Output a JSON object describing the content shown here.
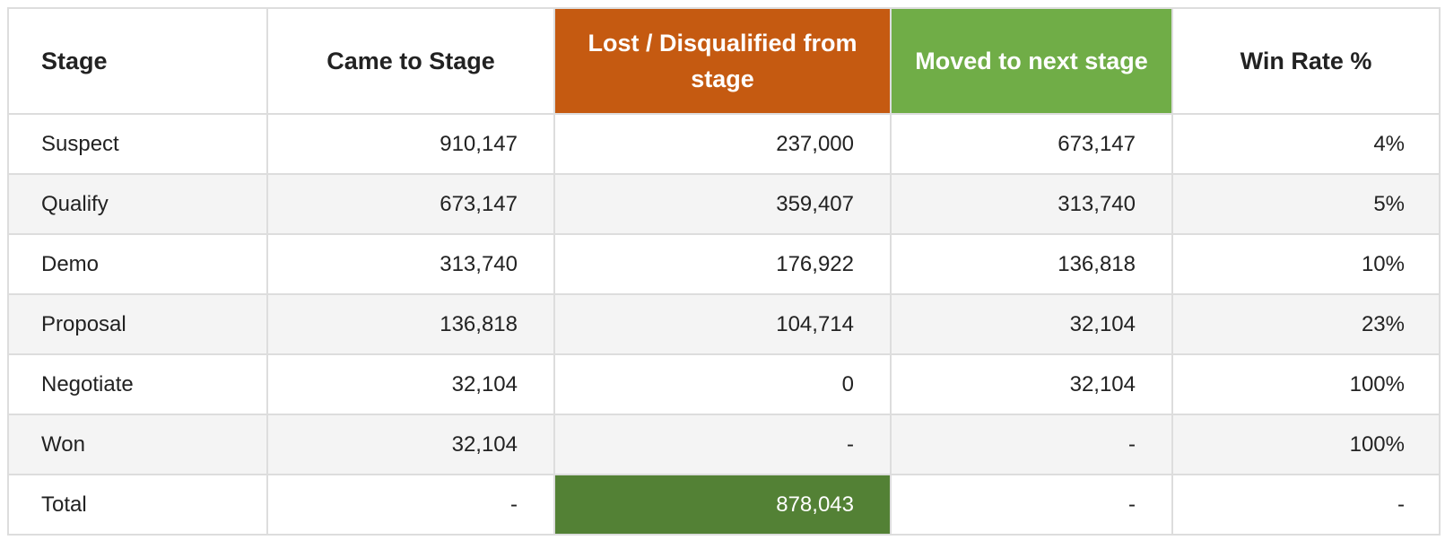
{
  "table": {
    "headers": {
      "stage": "Stage",
      "came": "Came to Stage",
      "lost": "Lost / Disqualified from stage",
      "moved": "Moved to next stage",
      "win": "Win Rate %"
    },
    "rows": [
      {
        "stage": "Suspect",
        "came": "910,147",
        "lost": "237,000",
        "moved": "673,147",
        "win": "4%"
      },
      {
        "stage": "Qualify",
        "came": "673,147",
        "lost": "359,407",
        "moved": "313,740",
        "win": "5%"
      },
      {
        "stage": "Demo",
        "came": "313,740",
        "lost": "176,922",
        "moved": "136,818",
        "win": "10%"
      },
      {
        "stage": "Proposal",
        "came": "136,818",
        "lost": "104,714",
        "moved": "32,104",
        "win": "23%"
      },
      {
        "stage": "Negotiate",
        "came": "32,104",
        "lost": "0",
        "moved": "32,104",
        "win": "100%"
      },
      {
        "stage": "Won",
        "came": "32,104",
        "lost": "-",
        "moved": "-",
        "win": "100%"
      },
      {
        "stage": "Total",
        "came": "-",
        "lost": "878,043",
        "moved": "-",
        "win": "-"
      }
    ]
  },
  "colors": {
    "lost_header": "#c55a11",
    "moved_header": "#70ad47",
    "lost_total": "#538135",
    "grid": "#dddddd",
    "alt_row": "#f4f4f4"
  }
}
